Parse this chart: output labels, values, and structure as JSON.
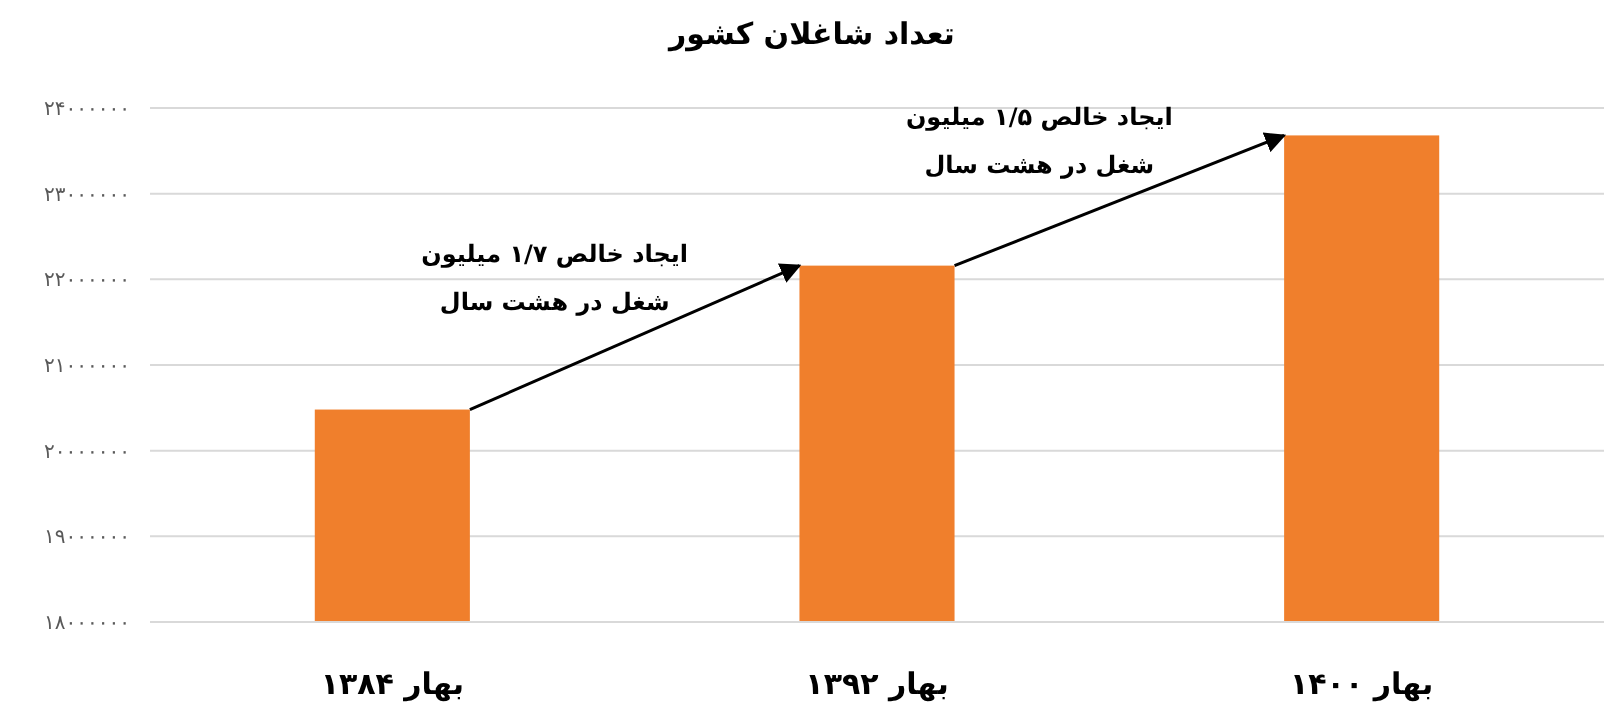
{
  "chart_data": {
    "type": "bar",
    "title": "تعداد شاغلان کشور",
    "categories": [
      "بهار ۱۳۸۴",
      "بهار ۱۳۹۲",
      "بهار ۱۴۰۰"
    ],
    "values": [
      20480000,
      22160000,
      23680000
    ],
    "color": "#f07f2c",
    "ylim": [
      18000000,
      24000000
    ],
    "yticks": [
      {
        "value": 18000000,
        "label": "۱۸۰۰۰۰۰۰"
      },
      {
        "value": 19000000,
        "label": "۱۹۰۰۰۰۰۰"
      },
      {
        "value": 20000000,
        "label": "۲۰۰۰۰۰۰۰"
      },
      {
        "value": 21000000,
        "label": "۲۱۰۰۰۰۰۰"
      },
      {
        "value": 22000000,
        "label": "۲۲۰۰۰۰۰۰"
      },
      {
        "value": 23000000,
        "label": "۲۳۰۰۰۰۰۰"
      },
      {
        "value": 24000000,
        "label": "۲۴۰۰۰۰۰۰"
      }
    ],
    "grid": "y",
    "annotations": [
      "ایجاد خالص ۱/۷ میلیون\nشغل در هشت سال",
      "ایجاد خالص ۱/۵ میلیون\nشغل در هشت سال"
    ]
  }
}
